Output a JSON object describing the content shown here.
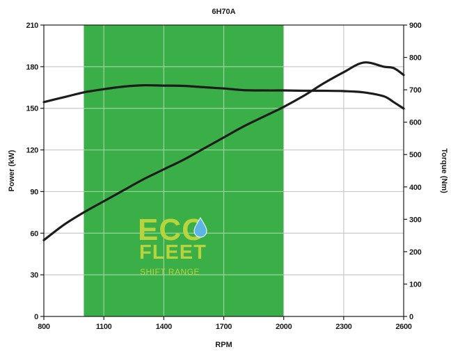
{
  "chart_data": {
    "type": "line",
    "title": "6H70A",
    "xlabel": "RPM",
    "ylabel": "Power (kW)",
    "y2label": "Torque (Nm)",
    "xlim": [
      800,
      2600
    ],
    "ylim": [
      0,
      210
    ],
    "y2lim": [
      0,
      900
    ],
    "x_ticks": [
      "800",
      "1100",
      "1400",
      "1700",
      "2000",
      "2300",
      "2600"
    ],
    "y_ticks": [
      "0",
      "30",
      "60",
      "90",
      "120",
      "150",
      "180",
      "210"
    ],
    "y2_ticks": [
      "0",
      "100",
      "200",
      "300",
      "400",
      "500",
      "600",
      "700",
      "800",
      "900"
    ],
    "grid": true,
    "shaded_range": {
      "x_start": 1000,
      "x_end": 2000,
      "color": "#3aae47"
    },
    "series": [
      {
        "axis": "left",
        "x": [
          800,
          900,
          1000,
          1100,
          1200,
          1300,
          1400,
          1500,
          1600,
          1700,
          1800,
          1900,
          2000,
          2100,
          2200,
          2300,
          2400,
          2500,
          2550,
          2600
        ],
        "values": [
          55,
          66,
          75,
          83,
          91,
          99,
          106,
          113,
          121,
          129,
          137,
          144,
          151,
          159,
          168,
          176,
          183,
          180,
          179,
          174
        ]
      },
      {
        "axis": "right",
        "x": [
          800,
          900,
          1000,
          1100,
          1200,
          1300,
          1400,
          1500,
          1600,
          1700,
          1800,
          1900,
          2000,
          2100,
          2200,
          2300,
          2400,
          2500,
          2550,
          2600
        ],
        "values": [
          662,
          677,
          692,
          702,
          710,
          714,
          713,
          712,
          708,
          704,
          699,
          698,
          698,
          697,
          697,
          696,
          692,
          680,
          662,
          642
        ]
      }
    ],
    "line_color": "#1c1c1c"
  },
  "watermark": {
    "line1": "ECO",
    "line2": "FLEET",
    "line3": "SHIFT RANGE",
    "color": "#b7d43c",
    "drop_color": "#5bb6e6"
  }
}
